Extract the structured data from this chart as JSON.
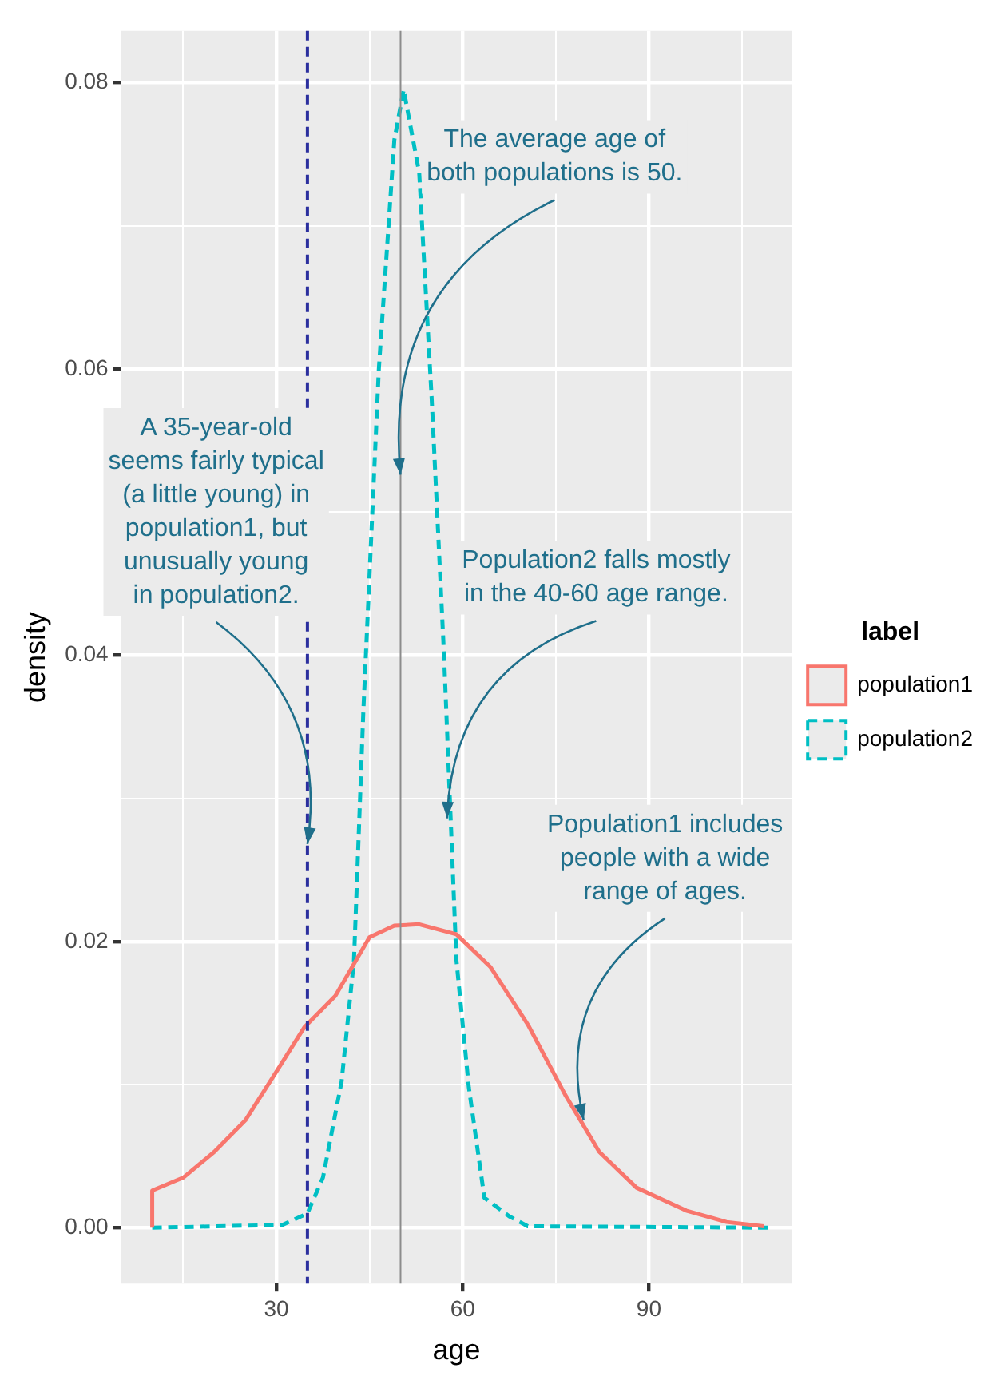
{
  "chart_data": {
    "type": "line",
    "xlabel": "age",
    "ylabel": "density",
    "legend_title": "label",
    "legend": "right",
    "grid": true,
    "marker": "none",
    "xlim": [
      5,
      113
    ],
    "ylim": [
      -0.0039,
      0.0836
    ],
    "xticks": [
      {
        "value": 15,
        "label": null
      },
      30,
      {
        "value": 45,
        "label": null
      },
      60,
      {
        "value": 75,
        "label": null
      },
      90,
      {
        "value": 105,
        "label": null
      }
    ],
    "yticks": [
      {
        "value": 0,
        "label": "0.00"
      },
      {
        "value": 0.01,
        "label": null
      },
      {
        "value": 0.02,
        "label": "0.02"
      },
      {
        "value": 0.03,
        "label": null
      },
      {
        "value": 0.04,
        "label": "0.04"
      },
      {
        "value": 0.05,
        "label": null
      },
      {
        "value": 0.06,
        "label": "0.06"
      },
      {
        "value": 0.07,
        "label": null
      },
      {
        "value": 0.08,
        "label": "0.08"
      }
    ],
    "series": [
      {
        "name": "population1",
        "color": "#f8766d",
        "line_style": "solid",
        "x": [
          10,
          10,
          15,
          20,
          25,
          30,
          34.5,
          39.5,
          45,
          49,
          53,
          59,
          64.5,
          70.5,
          76.5,
          82,
          88,
          96,
          102.5,
          108.5
        ],
        "values": [
          0,
          0.0026,
          0.0035,
          0.0053,
          0.0075,
          0.0109,
          0.014,
          0.0162,
          0.0203,
          0.0211,
          0.0212,
          0.0205,
          0.0182,
          0.0142,
          0.0093,
          0.0053,
          0.0028,
          0.0012,
          0.0004,
          0.0001
        ]
      },
      {
        "name": "population2",
        "color": "#00bfc4",
        "line_style": "dashed",
        "x": [
          10,
          31,
          35,
          37.5,
          40.5,
          42.5,
          44,
          46.5,
          49,
          50.5,
          53,
          55,
          57,
          59,
          61,
          63.5,
          67.5,
          70.5,
          110
        ],
        "values": [
          0,
          0.0002,
          0.001,
          0.0035,
          0.0102,
          0.0187,
          0.036,
          0.06,
          0.076,
          0.0795,
          0.0737,
          0.058,
          0.04,
          0.0187,
          0.0098,
          0.0021,
          0.0008,
          0.0001,
          0
        ]
      }
    ],
    "ref_lines": [
      {
        "axis": "x",
        "value": 35,
        "color": "#2b2f9e",
        "line_style": "dashed"
      },
      {
        "axis": "x",
        "value": 50,
        "color": "#8c8c8c",
        "line_style": "solid"
      }
    ],
    "annotations": [
      {
        "text": "The average age of\nboth populations is 50.",
        "x": 50,
        "y": 0.0526
      },
      {
        "text": "A 35-year-old\nseems fairly typical\n(a little young) in\npopulation1, but\nunusually young\nin population2.",
        "x": 35,
        "y": 0.0268
      },
      {
        "text": "Population2 falls mostly\nin the 40-60 age range.",
        "x": 57.5,
        "y": 0.0286
      },
      {
        "text": "Population1 includes\npeople with a wide\nrange of ages.",
        "x": 79.5,
        "y": 0.0075
      }
    ]
  }
}
